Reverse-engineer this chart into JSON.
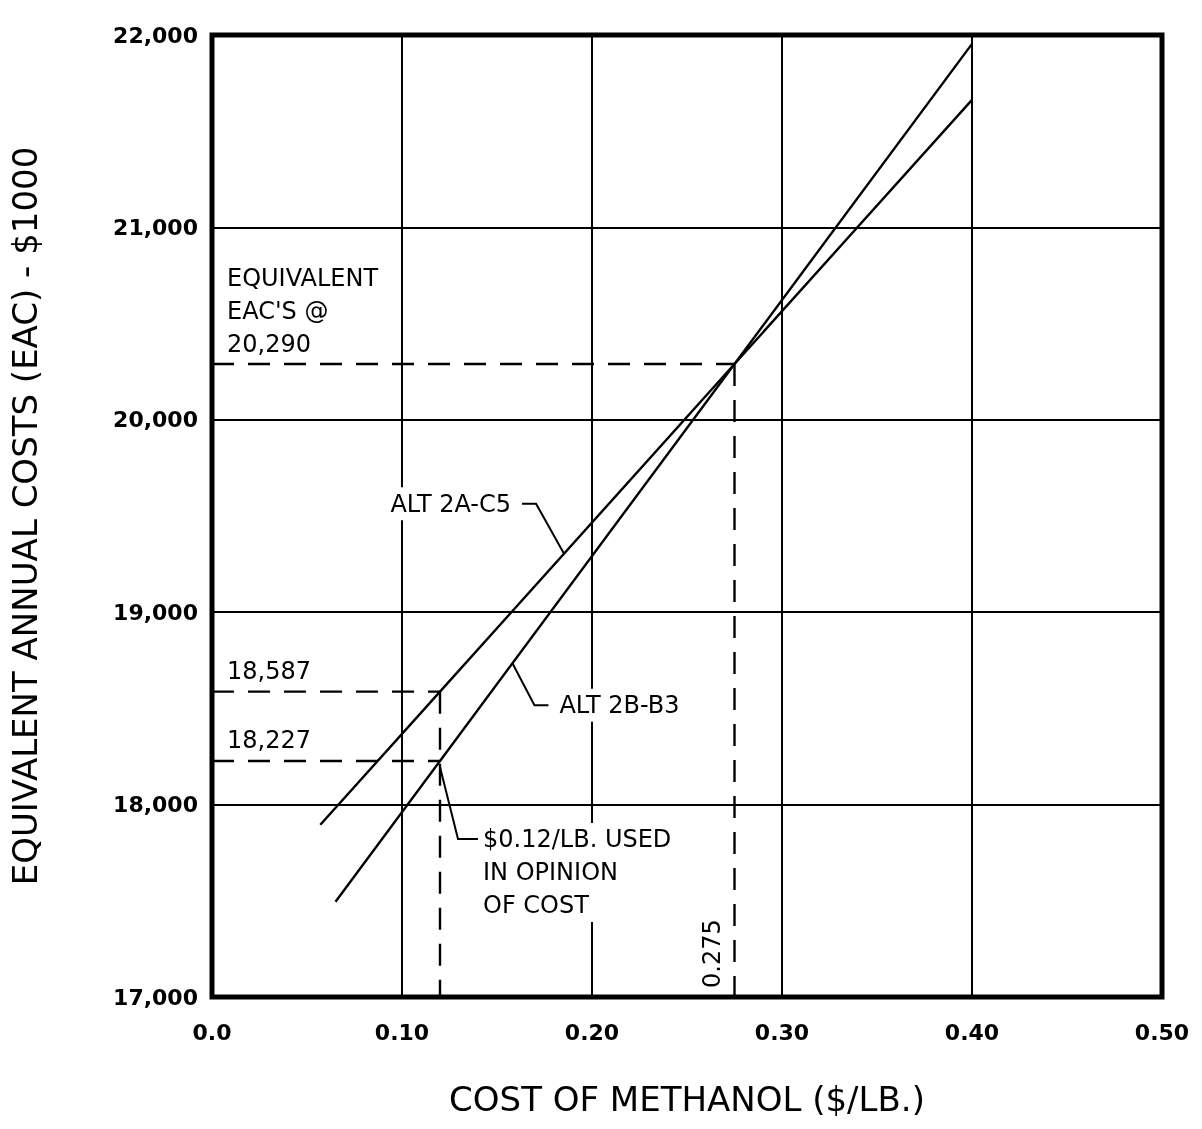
{
  "chart_data": {
    "type": "line",
    "xlabel": "COST OF METHANOL ($/LB.)",
    "ylabel": "EQUIVALENT ANNUAL COSTS (EAC) - $1000",
    "xlim": [
      0,
      0.5
    ],
    "xticks": [
      {
        "value": 0,
        "label": "0.0"
      },
      {
        "value": 0.1,
        "label": "0.10"
      },
      {
        "value": 0.2,
        "label": "0.20"
      },
      {
        "value": 0.3,
        "label": "0.30"
      },
      {
        "value": 0.4,
        "label": "0.40"
      },
      {
        "value": 0.5,
        "label": "0.50"
      }
    ],
    "ylim": [
      17000,
      22000
    ],
    "yticks": [
      {
        "value": 17000,
        "label": "17,000"
      },
      {
        "value": 18000,
        "label": "18,000"
      },
      {
        "value": 19000,
        "label": "19,000"
      },
      {
        "value": 20000,
        "label": "20,000"
      },
      {
        "value": 21000,
        "label": "21,000"
      },
      {
        "value": 22000,
        "label": "22,000"
      }
    ],
    "grid": true,
    "marker": "none",
    "series": [
      {
        "name": "ALT 2A-C5",
        "color": "#000000",
        "x": [
          0.057,
          0.12,
          0.275,
          0.4
        ],
        "values": [
          17895,
          18587,
          20290,
          21663
        ]
      },
      {
        "name": "ALT 2B-B3",
        "color": "#000000",
        "x": [
          0.065,
          0.12,
          0.275,
          0.4
        ],
        "values": [
          17495,
          18227,
          20290,
          21954
        ]
      },
      {
        "color": "#000000",
        "line_style": "dashed",
        "x": [
          0,
          0.12
        ],
        "values": [
          18587,
          18587
        ]
      },
      {
        "color": "#000000",
        "line_style": "dashed",
        "x": [
          0,
          0.12
        ],
        "values": [
          18227,
          18227
        ]
      },
      {
        "color": "#000000",
        "line_style": "dashed",
        "x": [
          0,
          0.275
        ],
        "values": [
          20290,
          20290
        ]
      },
      {
        "color": "#000000",
        "line_style": "dashed",
        "x": [
          0.12,
          0.12
        ],
        "values": [
          18587,
          17000
        ]
      },
      {
        "color": "#000000",
        "line_style": "dashed",
        "x": [
          0.275,
          0.275
        ],
        "values": [
          20290,
          17000
        ]
      }
    ],
    "annotations": [
      {
        "text": "EQUIVALENT\nEAC'S @\n20,290",
        "x": 0,
        "y": 20290
      },
      {
        "text": "18,587",
        "x": 0,
        "y": 18587
      },
      {
        "text": "18,227",
        "x": 0,
        "y": 18227
      },
      {
        "text": "0.275",
        "x": 0.275,
        "y": 17000
      },
      {
        "text": "$0.12/LB. USED\nIN OPINION\nOF COST",
        "x": 0.12,
        "y": 18227
      }
    ]
  }
}
